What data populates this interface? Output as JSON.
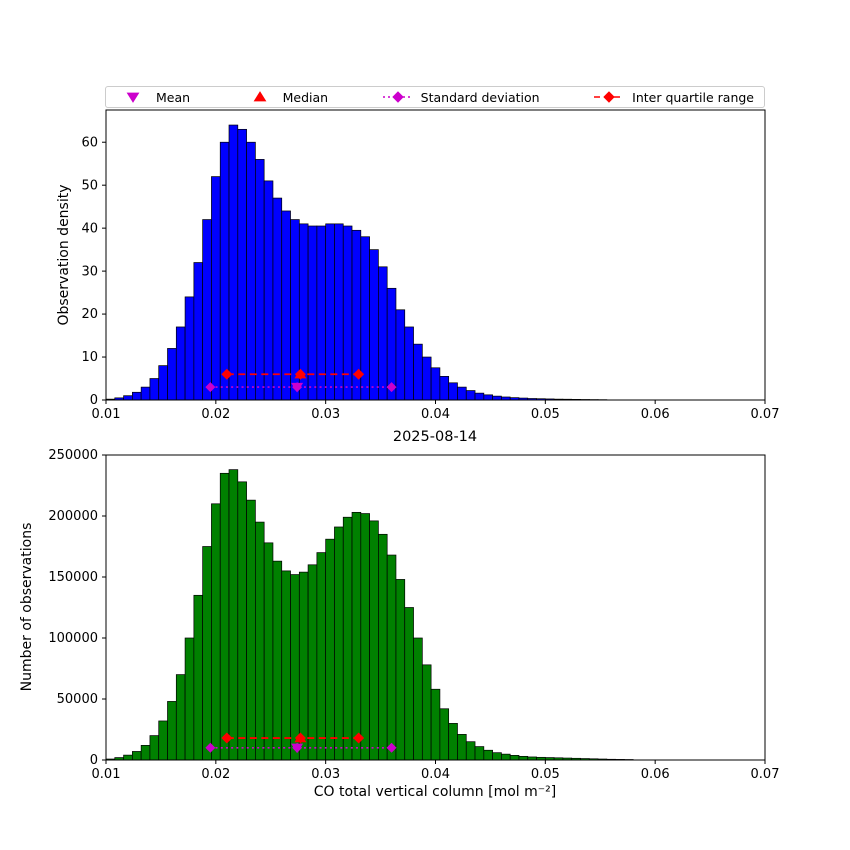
{
  "figure": {
    "background": "#ffffff"
  },
  "legend": {
    "border_color": "#cccccc",
    "items": [
      {
        "label": "Mean",
        "marker": "triangle-down",
        "color": "#cc00cc",
        "linestyle": "none"
      },
      {
        "label": "Median",
        "marker": "triangle-up",
        "color": "#ff0000",
        "linestyle": "none"
      },
      {
        "label": "Standard deviation",
        "marker": "diamond",
        "color": "#cc00cc",
        "linestyle": "dotted"
      },
      {
        "label": "Inter quartile range",
        "marker": "diamond",
        "color": "#ff0000",
        "linestyle": "dashed"
      }
    ]
  },
  "chart_data": [
    {
      "id": "observation-density",
      "type": "bar",
      "title": "",
      "ylabel": "Observation density",
      "xlim": [
        0.01,
        0.07
      ],
      "ylim": [
        0,
        67.5
      ],
      "xticks": [
        0.01,
        0.02,
        0.03,
        0.04,
        0.05,
        0.06,
        0.07
      ],
      "yticks": [
        0,
        10,
        20,
        30,
        40,
        50,
        60
      ],
      "bar_color": "#0000ff",
      "bar_edge_color": "#000000",
      "bin_start": 0.01,
      "bin_width": 0.0008,
      "values": [
        0.2,
        0.5,
        1.0,
        1.8,
        3,
        5,
        8,
        12,
        17,
        24,
        32,
        42,
        52,
        60,
        64,
        63,
        60,
        56,
        51,
        47,
        44,
        42,
        41,
        40.5,
        40.5,
        41,
        41,
        40.5,
        39.5,
        38,
        35,
        31,
        26,
        21,
        17,
        13,
        10,
        7.5,
        5.5,
        4,
        3,
        2.2,
        1.6,
        1.2,
        0.9,
        0.7,
        0.55,
        0.45,
        0.35,
        0.3,
        0.25,
        0.2,
        0.18,
        0.15,
        0.12,
        0.1,
        0.08,
        0.06,
        0.05,
        0.04
      ],
      "markers": {
        "mean": {
          "x": 0.0274,
          "y": 3
        },
        "median": {
          "x": 0.0277,
          "y": 6
        },
        "std_range": {
          "x1": 0.0195,
          "x2": 0.036,
          "y": 3
        },
        "iqr_range": {
          "x1": 0.021,
          "x2": 0.033,
          "y": 6
        }
      }
    },
    {
      "id": "number-of-observations",
      "type": "bar",
      "title": "2025-08-14",
      "ylabel": "Number of observations",
      "xlabel": "CO total vertical column [mol m⁻²]",
      "xlim": [
        0.01,
        0.07
      ],
      "ylim": [
        0,
        250000
      ],
      "xticks": [
        0.01,
        0.02,
        0.03,
        0.04,
        0.05,
        0.06,
        0.07
      ],
      "yticks": [
        0,
        50000,
        100000,
        150000,
        200000,
        250000
      ],
      "bar_color": "#008000",
      "bar_edge_color": "#000000",
      "bin_start": 0.01,
      "bin_width": 0.0008,
      "values": [
        800,
        2000,
        4000,
        7000,
        12000,
        20000,
        32000,
        48000,
        70000,
        100000,
        135000,
        175000,
        210000,
        235000,
        238000,
        228000,
        213000,
        195000,
        178000,
        163000,
        155000,
        152000,
        154000,
        160000,
        170000,
        181000,
        191000,
        199000,
        203000,
        202000,
        196000,
        185000,
        168000,
        148000,
        125000,
        100000,
        78000,
        58000,
        42000,
        30000,
        21000,
        15000,
        11000,
        8000,
        6000,
        4800,
        3800,
        3000,
        2500,
        2200,
        2000,
        1800,
        1600,
        1400,
        1200,
        1000,
        800,
        600,
        500,
        400
      ],
      "markers": {
        "mean": {
          "x": 0.0274,
          "y": 10000
        },
        "median": {
          "x": 0.0277,
          "y": 18000
        },
        "std_range": {
          "x1": 0.0195,
          "x2": 0.036,
          "y": 10000
        },
        "iqr_range": {
          "x1": 0.021,
          "x2": 0.033,
          "y": 18000
        }
      }
    }
  ]
}
